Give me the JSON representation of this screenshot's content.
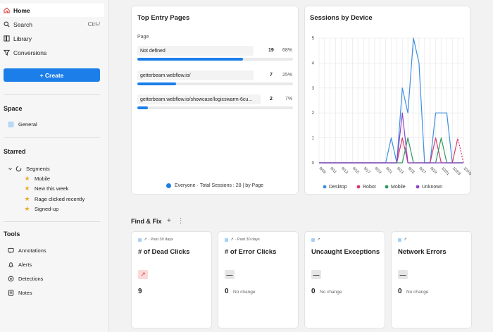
{
  "sidebar": {
    "nav": [
      {
        "label": "Home",
        "icon": "home-icon",
        "active": true
      },
      {
        "label": "Search",
        "icon": "search-icon",
        "shortcut": "Ctrl-/"
      },
      {
        "label": "Library",
        "icon": "library-icon"
      },
      {
        "label": "Conversions",
        "icon": "funnel-icon"
      }
    ],
    "create_label": "+ Create",
    "space": {
      "title": "Space",
      "items": [
        {
          "label": "General",
          "icon": "folder-icon"
        }
      ]
    },
    "starred": {
      "title": "Starred",
      "group_label": "Segments",
      "items": [
        "Mobile",
        "New this week",
        "Rage clicked recently",
        "Signed-up"
      ]
    },
    "tools": {
      "title": "Tools",
      "items": [
        {
          "label": "Annotations",
          "icon": "annotation-icon"
        },
        {
          "label": "Alerts",
          "icon": "bell-icon"
        },
        {
          "label": "Detections",
          "icon": "detection-icon"
        },
        {
          "label": "Notes",
          "icon": "notes-icon"
        }
      ]
    }
  },
  "top_entry": {
    "title": "Top Entry Pages",
    "column_label": "Page",
    "rows": [
      {
        "page": "Not defined",
        "count": "19",
        "pct": "68%",
        "share": 0.68
      },
      {
        "page": "getterbeam.webflow.io/",
        "count": "7",
        "pct": "25%",
        "share": 0.25
      },
      {
        "page": "getterbeam.webflow.io/showcase/logicswarm-6cu...",
        "count": "2",
        "pct": "7%",
        "share": 0.07
      }
    ],
    "legend": {
      "segment": "Everyone",
      "sep": "·",
      "total": "Total Sessions : 28",
      "by": "| by Page"
    }
  },
  "chart_data": {
    "type": "line",
    "title": "Sessions by Device",
    "x": [
      "9/09",
      "9/11",
      "9/13",
      "9/15",
      "9/17",
      "9/19",
      "9/21",
      "9/23",
      "9/25",
      "9/27",
      "9/29",
      "10/01",
      "10/03",
      "10/05"
    ],
    "ylim": [
      0,
      5
    ],
    "y_ticks": [
      "0",
      "1",
      "2",
      "3",
      "4",
      "5"
    ],
    "grid": true,
    "legend_position": "bottom",
    "series": [
      {
        "name": "Desktop",
        "color": "#3d8fe0",
        "points": [
          [
            0,
            0
          ],
          [
            12,
            0
          ],
          [
            13,
            1
          ],
          [
            14,
            0
          ],
          [
            15,
            3
          ],
          [
            16,
            2
          ],
          [
            17,
            5
          ],
          [
            18,
            4
          ],
          [
            19,
            0
          ],
          [
            20,
            0
          ],
          [
            21,
            2
          ],
          [
            22,
            2
          ],
          [
            23,
            2
          ],
          [
            24,
            0
          ],
          [
            25,
            0
          ],
          [
            26,
            0
          ]
        ]
      },
      {
        "name": "Robot",
        "color": "#d9376a",
        "points": [
          [
            0,
            0
          ],
          [
            14,
            0
          ],
          [
            15,
            1
          ],
          [
            16,
            0
          ],
          [
            20,
            0
          ],
          [
            21,
            1
          ],
          [
            22,
            0
          ],
          [
            24,
            0
          ],
          [
            25,
            1
          ],
          [
            26,
            0
          ]
        ]
      },
      {
        "name": "Mobile",
        "color": "#2e9a5f",
        "points": [
          [
            0,
            0
          ],
          [
            15,
            0
          ],
          [
            16,
            1
          ],
          [
            17,
            0
          ],
          [
            21,
            0
          ],
          [
            22,
            1
          ],
          [
            23,
            0
          ],
          [
            26,
            0
          ]
        ]
      },
      {
        "name": "Unknown",
        "color": "#8a44c8",
        "points": [
          [
            0,
            0
          ],
          [
            14,
            0
          ],
          [
            15,
            2
          ],
          [
            16,
            0
          ],
          [
            26,
            0
          ]
        ]
      }
    ]
  },
  "find_fix": {
    "title": "Find & Fix",
    "cards": [
      {
        "period": "Past 30 days",
        "title": "# of Dead Clicks",
        "trend": "↗",
        "trend_kind": "up",
        "value": "9",
        "change": ""
      },
      {
        "period": "Past 30 days",
        "title": "# of Error Clicks",
        "trend": "—",
        "trend_kind": "flat",
        "value": "0",
        "change": "No change"
      },
      {
        "period": "",
        "title": "Uncaught Exceptions",
        "trend": "—",
        "trend_kind": "flat",
        "value": "0",
        "change": "No change"
      },
      {
        "period": "",
        "title": "Network Errors",
        "trend": "—",
        "trend_kind": "flat",
        "value": "0",
        "change": "No change"
      }
    ]
  },
  "colors": {
    "accent": "#1c7ee8",
    "background": "#f2f2f2"
  }
}
